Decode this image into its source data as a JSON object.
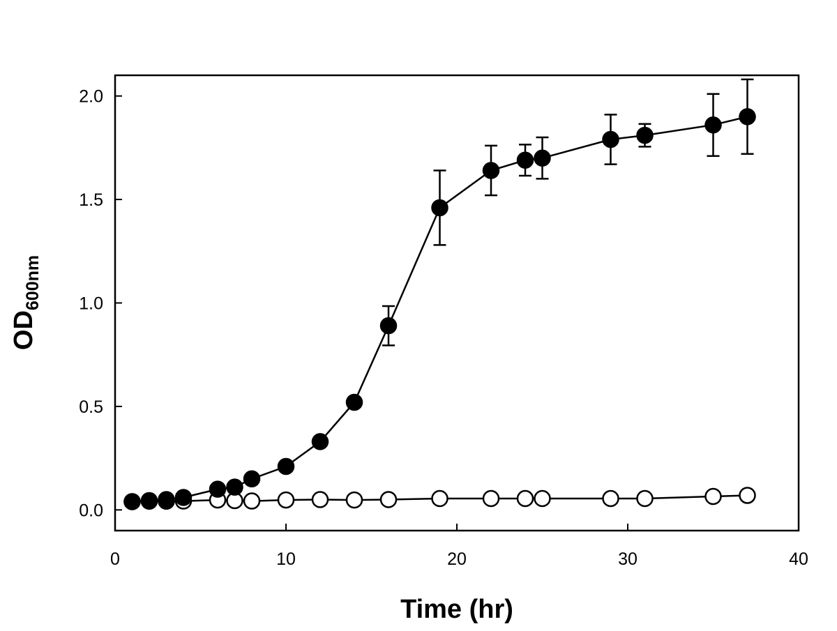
{
  "chart_data": {
    "type": "line",
    "title": "",
    "xlabel": "Time (hr)",
    "ylabel": {
      "main": "OD",
      "subscript": "600nm"
    },
    "xlim": [
      0,
      40
    ],
    "ylim": [
      -0.1,
      2.1
    ],
    "xticks": [
      0,
      10,
      20,
      30,
      40
    ],
    "xtick_labels": [
      "0",
      "10",
      "20",
      "30",
      "40"
    ],
    "yticks": [
      0.0,
      0.5,
      1.0,
      1.5,
      2.0
    ],
    "ytick_labels": [
      "0.0",
      "0.5",
      "1.0",
      "1.5",
      "2.0"
    ],
    "grid": false,
    "legend": "none",
    "series": [
      {
        "name": "filled circles",
        "marker": "filled-circle",
        "color": "#000000",
        "x": [
          1,
          2,
          3,
          4,
          6,
          7,
          8,
          10,
          12,
          14,
          16,
          19,
          22,
          24,
          25,
          29,
          31,
          35,
          37
        ],
        "y": [
          0.04,
          0.045,
          0.05,
          0.06,
          0.1,
          0.11,
          0.15,
          0.21,
          0.33,
          0.52,
          0.89,
          1.46,
          1.64,
          1.69,
          1.7,
          1.79,
          1.81,
          1.86,
          1.9
        ],
        "err": [
          0,
          0,
          0,
          0,
          0,
          0,
          0,
          0,
          0,
          0,
          0.095,
          0.18,
          0.12,
          0.075,
          0.1,
          0.12,
          0.055,
          0.15,
          0.18
        ]
      },
      {
        "name": "open circles",
        "marker": "open-circle",
        "color": "#000000",
        "x": [
          1,
          2,
          3,
          4,
          6,
          7,
          8,
          10,
          12,
          14,
          16,
          19,
          22,
          24,
          25,
          29,
          31,
          35,
          37
        ],
        "y": [
          0.04,
          0.042,
          0.042,
          0.043,
          0.048,
          0.045,
          0.043,
          0.048,
          0.05,
          0.048,
          0.05,
          0.055,
          0.055,
          0.055,
          0.055,
          0.055,
          0.055,
          0.065,
          0.07
        ],
        "err": [
          0,
          0,
          0,
          0,
          0,
          0,
          0,
          0,
          0,
          0,
          0,
          0,
          0,
          0,
          0,
          0,
          0,
          0,
          0
        ]
      }
    ]
  }
}
